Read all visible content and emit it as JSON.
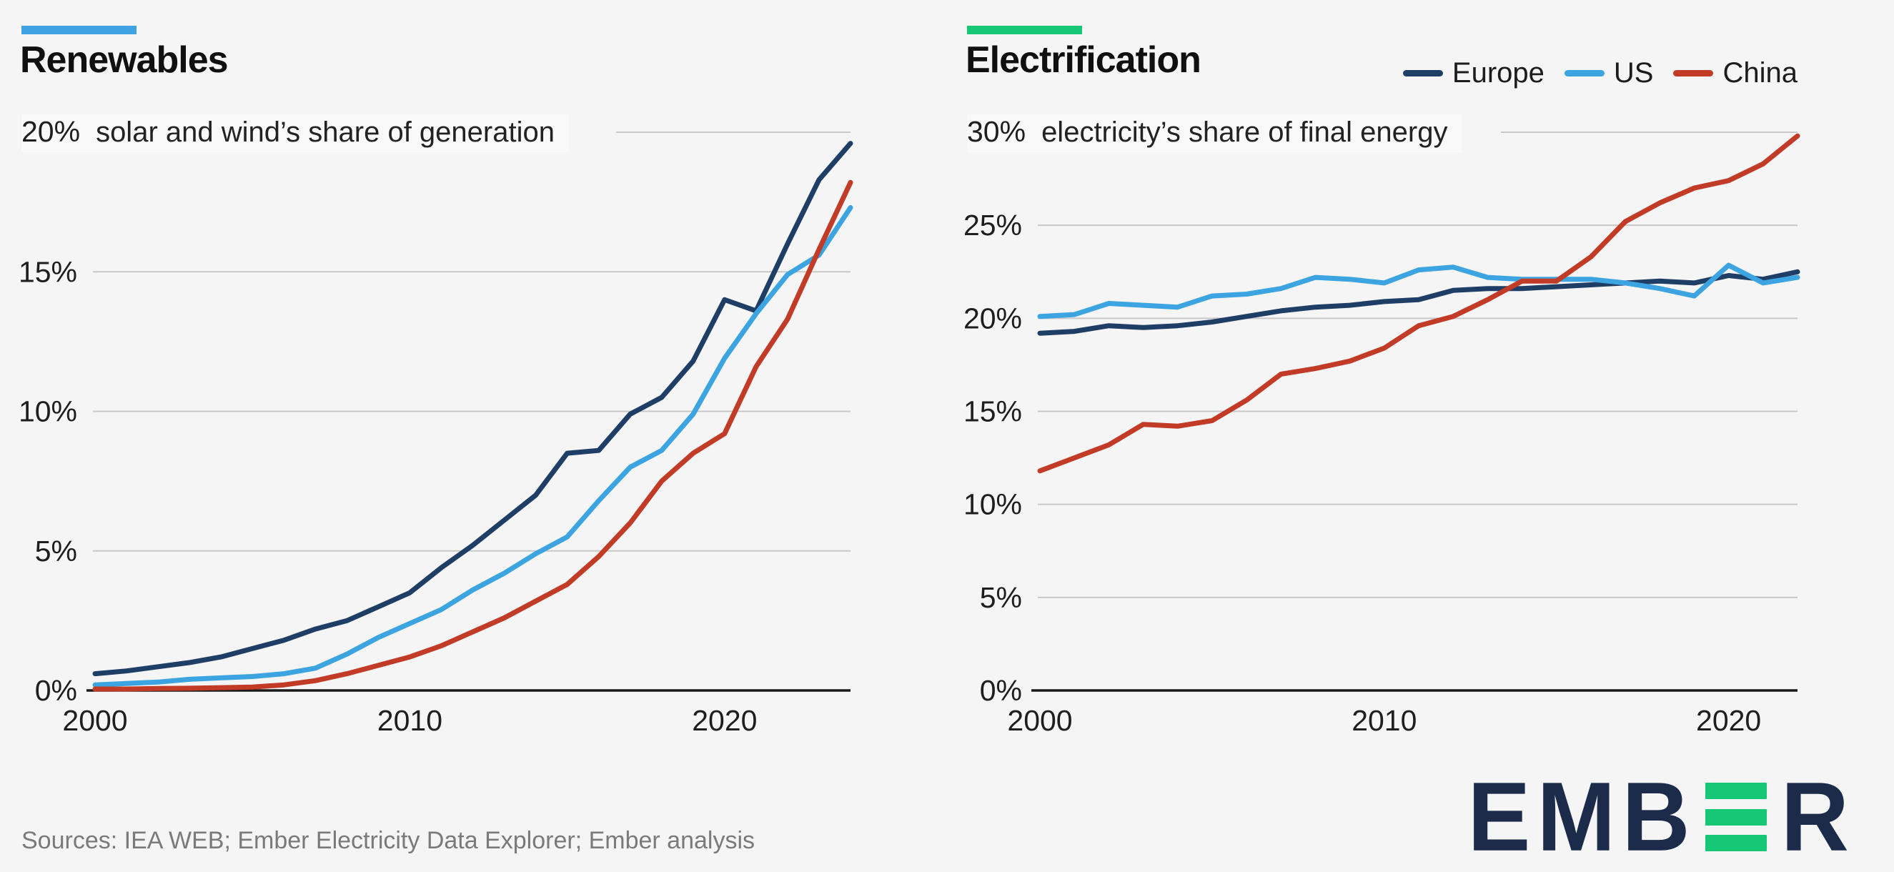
{
  "page": {
    "background": "#f5f5f6",
    "grid_color": "#c8c8c8",
    "axis_color": "#191919",
    "tick_text_color": "#1e1e1e"
  },
  "legend": {
    "items": [
      {
        "label": "Europe",
        "color": "#1f3e66"
      },
      {
        "label": "US",
        "color": "#3ca4e0"
      },
      {
        "label": "China",
        "color": "#c23b27"
      }
    ]
  },
  "sources": {
    "text": "Sources: IEA WEB; Ember Electricity Data Explorer; Ember analysis"
  },
  "logo": {
    "text_left": "EMB",
    "text_right": "R",
    "stylized_letter": "E",
    "bar_count": 3,
    "navy": "#1d2b4b",
    "green": "#16c875"
  },
  "chart_data": [
    {
      "id": "renewables",
      "type": "line",
      "title": "Renewables",
      "subtitle": "solar and wind’s share of generation",
      "top_axis_label": "20%",
      "accent_color": "#3da3e2",
      "x_start": 2000,
      "x_end": 2024,
      "x_ticks": [
        2000,
        2010,
        2020
      ],
      "ylim": [
        0,
        20
      ],
      "y_ticks": [
        0,
        5,
        10,
        15,
        20
      ],
      "y_unit": "%",
      "grid": "horizontal",
      "series": [
        {
          "name": "Europe",
          "color": "#1f3e66",
          "values": [
            0.6,
            0.7,
            0.85,
            1.0,
            1.2,
            1.5,
            1.8,
            2.2,
            2.5,
            3.0,
            3.5,
            4.4,
            5.2,
            6.1,
            7.0,
            8.5,
            8.6,
            9.9,
            10.5,
            11.8,
            14.0,
            13.6,
            16.0,
            18.3,
            19.6
          ]
        },
        {
          "name": "US",
          "color": "#3ca4e0",
          "values": [
            0.2,
            0.25,
            0.3,
            0.4,
            0.45,
            0.5,
            0.6,
            0.8,
            1.3,
            1.9,
            2.4,
            2.9,
            3.6,
            4.2,
            4.9,
            5.5,
            6.8,
            8.0,
            8.6,
            9.9,
            11.9,
            13.5,
            14.9,
            15.6,
            17.3
          ]
        },
        {
          "name": "China",
          "color": "#c23b27",
          "values": [
            0.05,
            0.05,
            0.07,
            0.08,
            0.1,
            0.12,
            0.2,
            0.35,
            0.6,
            0.9,
            1.2,
            1.6,
            2.1,
            2.6,
            3.2,
            3.8,
            4.8,
            6.0,
            7.5,
            8.5,
            9.2,
            11.6,
            13.3,
            15.8,
            18.2
          ]
        }
      ]
    },
    {
      "id": "electrification",
      "type": "line",
      "title": "Electrification",
      "subtitle": "electricity’s share of final energy",
      "top_axis_label": "30%",
      "accent_color": "#16c875",
      "x_start": 2000,
      "x_end": 2022,
      "x_ticks": [
        2000,
        2010,
        2020
      ],
      "ylim": [
        0,
        30
      ],
      "y_ticks": [
        0,
        5,
        10,
        15,
        20,
        25,
        30
      ],
      "y_unit": "%",
      "grid": "horizontal",
      "series": [
        {
          "name": "Europe",
          "color": "#1f3e66",
          "values": [
            19.2,
            19.3,
            19.6,
            19.5,
            19.6,
            19.8,
            20.1,
            20.4,
            20.6,
            20.7,
            20.9,
            21.0,
            21.5,
            21.6,
            21.6,
            21.7,
            21.8,
            21.9,
            22.0,
            21.9,
            22.3,
            22.1,
            22.5
          ]
        },
        {
          "name": "US",
          "color": "#3ca4e0",
          "values": [
            20.1,
            20.2,
            20.8,
            20.7,
            20.6,
            21.2,
            21.3,
            21.6,
            22.2,
            22.1,
            21.9,
            22.6,
            22.75,
            22.2,
            22.1,
            22.1,
            22.1,
            21.9,
            21.6,
            21.2,
            22.85,
            21.9,
            22.2
          ]
        },
        {
          "name": "China",
          "color": "#c23b27",
          "values": [
            11.8,
            12.5,
            13.2,
            14.3,
            14.2,
            14.5,
            15.6,
            17.0,
            17.3,
            17.7,
            18.4,
            19.6,
            20.1,
            21.0,
            22.0,
            22.0,
            23.3,
            25.2,
            26.2,
            27.0,
            27.4,
            28.3,
            29.8
          ]
        }
      ]
    }
  ]
}
